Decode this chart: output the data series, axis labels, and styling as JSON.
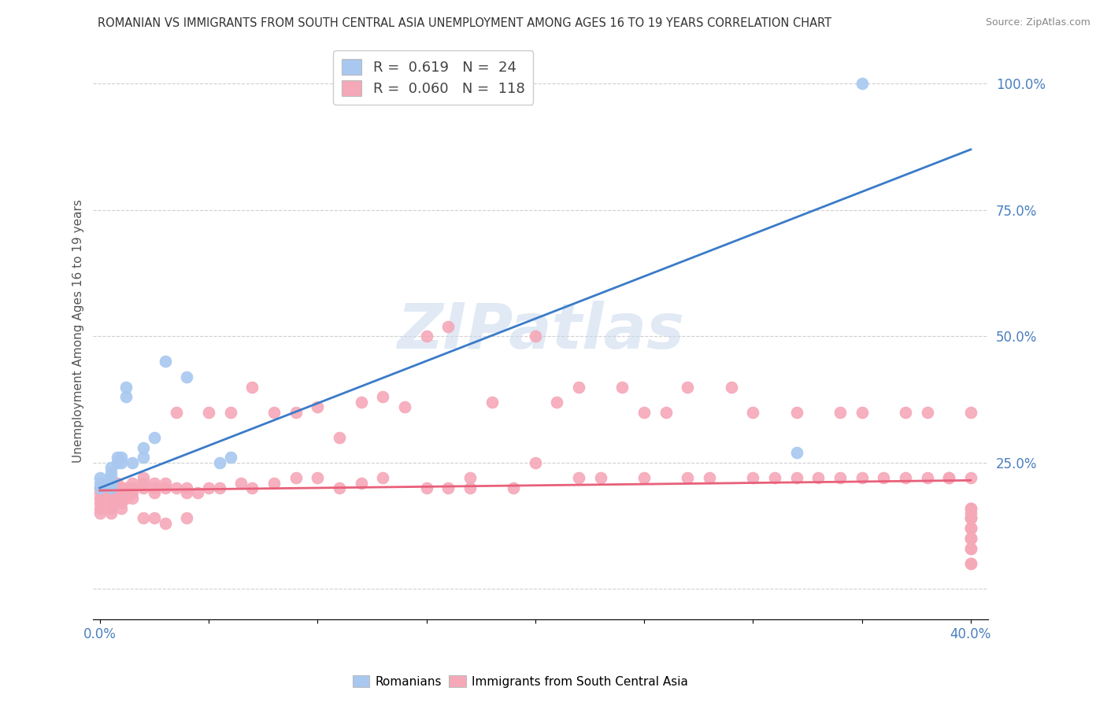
{
  "title": "ROMANIAN VS IMMIGRANTS FROM SOUTH CENTRAL ASIA UNEMPLOYMENT AMONG AGES 16 TO 19 YEARS CORRELATION CHART",
  "source": "Source: ZipAtlas.com",
  "ylabel": "Unemployment Among Ages 16 to 19 years",
  "xlim_min": -0.003,
  "xlim_max": 0.408,
  "ylim_min": -0.06,
  "ylim_max": 1.08,
  "yticks": [
    0.0,
    0.25,
    0.5,
    0.75,
    1.0
  ],
  "yticklabels": [
    "",
    "25.0%",
    "50.0%",
    "75.0%",
    "100.0%"
  ],
  "xtick_min_label": "0.0%",
  "xtick_max_label": "40.0%",
  "legend_R1": "0.619",
  "legend_N1": "24",
  "legend_R2": "0.060",
  "legend_N2": "118",
  "color_romanian": "#a8c8f0",
  "color_immigrant": "#f5a8b8",
  "color_line_romanian": "#3a7bc8",
  "color_line_immigrant": "#e8607a",
  "watermark": "ZIPatlas",
  "background_color": "#ffffff",
  "grid_color": "#d0d0d0",
  "blue_line_x0": 0.0,
  "blue_line_y0": 0.2,
  "blue_line_x1": 0.4,
  "blue_line_y1": 0.87,
  "pink_line_x0": 0.0,
  "pink_line_y0": 0.195,
  "pink_line_x1": 0.4,
  "pink_line_y1": 0.215,
  "rom_x": [
    0.0,
    0.0,
    0.0,
    0.005,
    0.005,
    0.005,
    0.005,
    0.005,
    0.008,
    0.008,
    0.01,
    0.01,
    0.012,
    0.012,
    0.015,
    0.02,
    0.02,
    0.025,
    0.03,
    0.04,
    0.055,
    0.06,
    0.32,
    0.35
  ],
  "rom_y": [
    0.2,
    0.21,
    0.22,
    0.2,
    0.21,
    0.22,
    0.23,
    0.24,
    0.25,
    0.26,
    0.25,
    0.26,
    0.38,
    0.4,
    0.25,
    0.26,
    0.28,
    0.3,
    0.45,
    0.42,
    0.25,
    0.26,
    0.27,
    1.0
  ],
  "imm_x": [
    0.0,
    0.0,
    0.0,
    0.0,
    0.0,
    0.0,
    0.005,
    0.005,
    0.005,
    0.005,
    0.005,
    0.008,
    0.008,
    0.008,
    0.01,
    0.01,
    0.01,
    0.01,
    0.01,
    0.012,
    0.012,
    0.012,
    0.015,
    0.015,
    0.015,
    0.015,
    0.02,
    0.02,
    0.02,
    0.02,
    0.025,
    0.025,
    0.025,
    0.025,
    0.03,
    0.03,
    0.03,
    0.035,
    0.035,
    0.04,
    0.04,
    0.04,
    0.045,
    0.05,
    0.05,
    0.055,
    0.06,
    0.065,
    0.07,
    0.07,
    0.08,
    0.08,
    0.09,
    0.09,
    0.1,
    0.1,
    0.11,
    0.11,
    0.12,
    0.12,
    0.13,
    0.13,
    0.14,
    0.15,
    0.15,
    0.16,
    0.16,
    0.17,
    0.17,
    0.18,
    0.19,
    0.2,
    0.2,
    0.21,
    0.22,
    0.22,
    0.23,
    0.24,
    0.25,
    0.25,
    0.26,
    0.27,
    0.27,
    0.28,
    0.29,
    0.3,
    0.3,
    0.31,
    0.32,
    0.32,
    0.33,
    0.34,
    0.34,
    0.35,
    0.35,
    0.36,
    0.37,
    0.37,
    0.38,
    0.38,
    0.39,
    0.39,
    0.4,
    0.4,
    0.4,
    0.4,
    0.4,
    0.4,
    0.4,
    0.4,
    0.4,
    0.4,
    0.4,
    0.4,
    0.4,
    0.4,
    0.4,
    0.4,
    0.4,
    0.4
  ],
  "imm_y": [
    0.2,
    0.19,
    0.18,
    0.17,
    0.16,
    0.15,
    0.19,
    0.18,
    0.17,
    0.16,
    0.15,
    0.21,
    0.2,
    0.19,
    0.2,
    0.19,
    0.18,
    0.17,
    0.16,
    0.2,
    0.19,
    0.18,
    0.21,
    0.2,
    0.19,
    0.18,
    0.22,
    0.21,
    0.2,
    0.14,
    0.21,
    0.2,
    0.19,
    0.14,
    0.21,
    0.2,
    0.13,
    0.2,
    0.35,
    0.2,
    0.19,
    0.14,
    0.19,
    0.35,
    0.2,
    0.2,
    0.35,
    0.21,
    0.4,
    0.2,
    0.35,
    0.21,
    0.35,
    0.22,
    0.36,
    0.22,
    0.3,
    0.2,
    0.37,
    0.21,
    0.38,
    0.22,
    0.36,
    0.5,
    0.2,
    0.52,
    0.2,
    0.22,
    0.2,
    0.37,
    0.2,
    0.5,
    0.25,
    0.37,
    0.4,
    0.22,
    0.22,
    0.4,
    0.35,
    0.22,
    0.35,
    0.22,
    0.4,
    0.22,
    0.4,
    0.35,
    0.22,
    0.22,
    0.35,
    0.22,
    0.22,
    0.35,
    0.22,
    0.35,
    0.22,
    0.22,
    0.22,
    0.35,
    0.22,
    0.35,
    0.22,
    0.22,
    0.22,
    0.35,
    0.05,
    0.08,
    0.1,
    0.12,
    0.14,
    0.16,
    0.1,
    0.12,
    0.14,
    0.15,
    0.05,
    0.08,
    0.1,
    0.12,
    0.14,
    0.16
  ]
}
